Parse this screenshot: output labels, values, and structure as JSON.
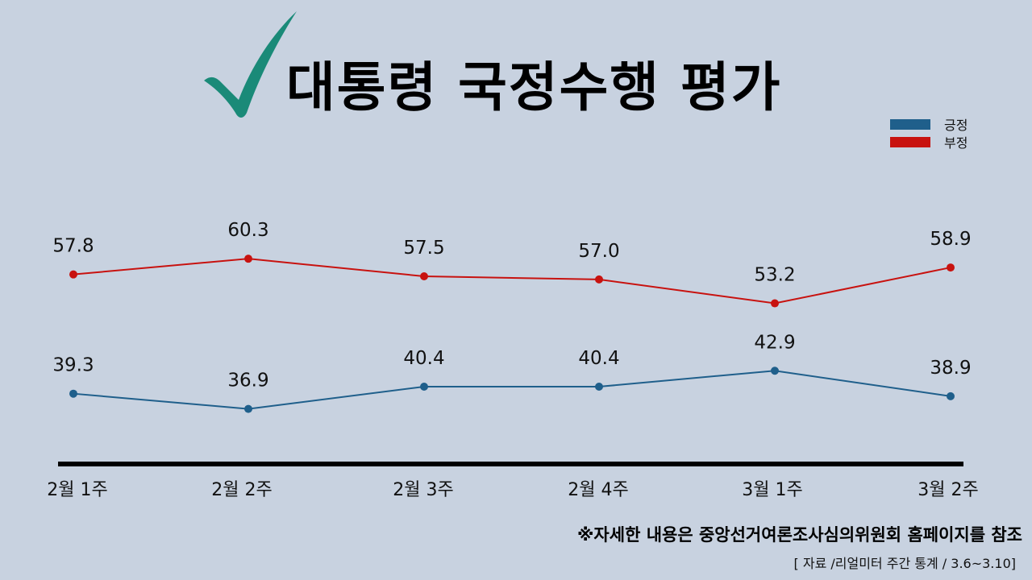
{
  "header": {
    "title": "대통령 국정수행 평가",
    "icon": "checkmark-icon",
    "icon_color": "#1a8a78"
  },
  "legend": [
    {
      "label": "긍정",
      "color": "#1f5f8b"
    },
    {
      "label": "부정",
      "color": "#c8120f"
    }
  ],
  "footer": {
    "note": "※자세한 내용은 중앙선거여론조사심의위원회 홈페이지를 참조",
    "source": "[ 자료 /리얼미터 주간 통계 / 3.6~3.10]"
  },
  "chart_data": {
    "type": "line",
    "title": "대통령 국정수행 평가",
    "categories": [
      "2월 1주",
      "2월 2주",
      "2월 3주",
      "2월 4주",
      "3월 1주",
      "3월 2주"
    ],
    "series": [
      {
        "name": "긍정",
        "color": "#1f5f8b",
        "values": [
          39.3,
          36.9,
          40.4,
          40.4,
          42.9,
          38.9
        ]
      },
      {
        "name": "부정",
        "color": "#c8120f",
        "values": [
          57.8,
          60.3,
          57.5,
          57.0,
          53.2,
          58.9
        ]
      }
    ],
    "xlabel": "",
    "ylabel": "",
    "grid": false,
    "legend_position": "top-right",
    "data_labels": true
  }
}
